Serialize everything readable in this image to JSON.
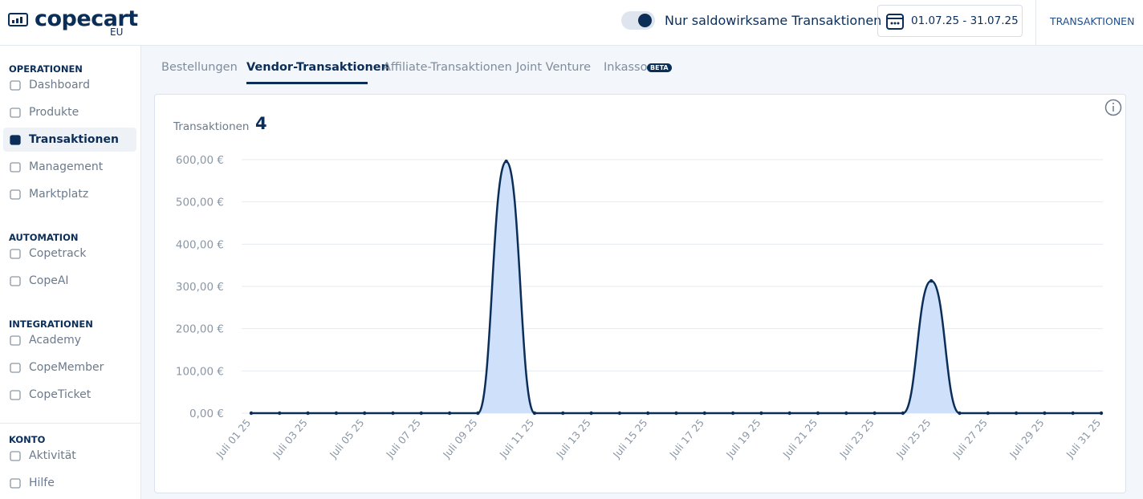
{
  "header": {
    "logo": "copecart",
    "logo_suffix": "EU",
    "toggle_label": "Nur saldowirksame Transaktionen",
    "date_range": "01.07.25 - 31.07.25",
    "nav_link": "TRANSAKTIONEN"
  },
  "sidebar": {
    "sections": [
      {
        "title": "OPERATIONEN",
        "items": [
          "Dashboard",
          "Produkte",
          "Transaktionen",
          "Management",
          "Marktplatz"
        ]
      },
      {
        "title": "AUTOMATION",
        "items": [
          "Copetrack",
          "CopeAI"
        ]
      },
      {
        "title": "INTEGRATIONEN",
        "items": [
          "Academy",
          "CopeMember",
          "CopeTicket"
        ]
      },
      {
        "title": "KONTO",
        "items": [
          "Aktivität",
          "Hilfe"
        ]
      }
    ]
  },
  "tabs": {
    "items": [
      "Bestellungen",
      "Vendor-Transaktionen",
      "Affiliate-Transaktionen",
      "Joint Venture",
      "Inkasso"
    ],
    "badge": "BETA"
  },
  "chart_data": {
    "type": "line",
    "title": "Transaktionen",
    "total": 4,
    "categories": [
      "Juli 01 25",
      null,
      "Juli 03 25",
      null,
      "Juli 05 25",
      null,
      "Juli 07 25",
      null,
      "Juli 09 25",
      null,
      "Juli 11 25",
      null,
      "Juli 13 25",
      null,
      "Juli 15 25",
      null,
      "Juli 17 25",
      null,
      "Juli 19 25",
      null,
      "Juli 21 25",
      null,
      "Juli 23 25",
      null,
      "Juli 25 25",
      null,
      "Juli 27 25",
      null,
      "Juli 29 25",
      null,
      "Juli 31 25"
    ],
    "values": [
      0,
      0,
      0,
      0,
      0,
      0,
      0,
      0,
      0,
      596,
      0,
      0,
      0,
      0,
      0,
      0,
      0,
      0,
      0,
      0,
      0,
      0,
      0,
      0,
      313,
      0,
      0,
      0,
      0,
      0,
      0
    ],
    "color": "#0b2e59",
    "area_color": "#cfe0fb",
    "grid": true,
    "ylim": [
      0,
      600
    ],
    "yticks": [
      {
        "value": 0,
        "label": "0,00 €"
      },
      {
        "value": 100,
        "label": "100,00 €"
      },
      {
        "value": 200,
        "label": "200,00 €"
      },
      {
        "value": 300,
        "label": "300,00 €"
      },
      {
        "value": 400,
        "label": "400,00 €"
      },
      {
        "value": 500,
        "label": "500,00 €"
      },
      {
        "value": 600,
        "label": "600,00 €"
      }
    ]
  }
}
